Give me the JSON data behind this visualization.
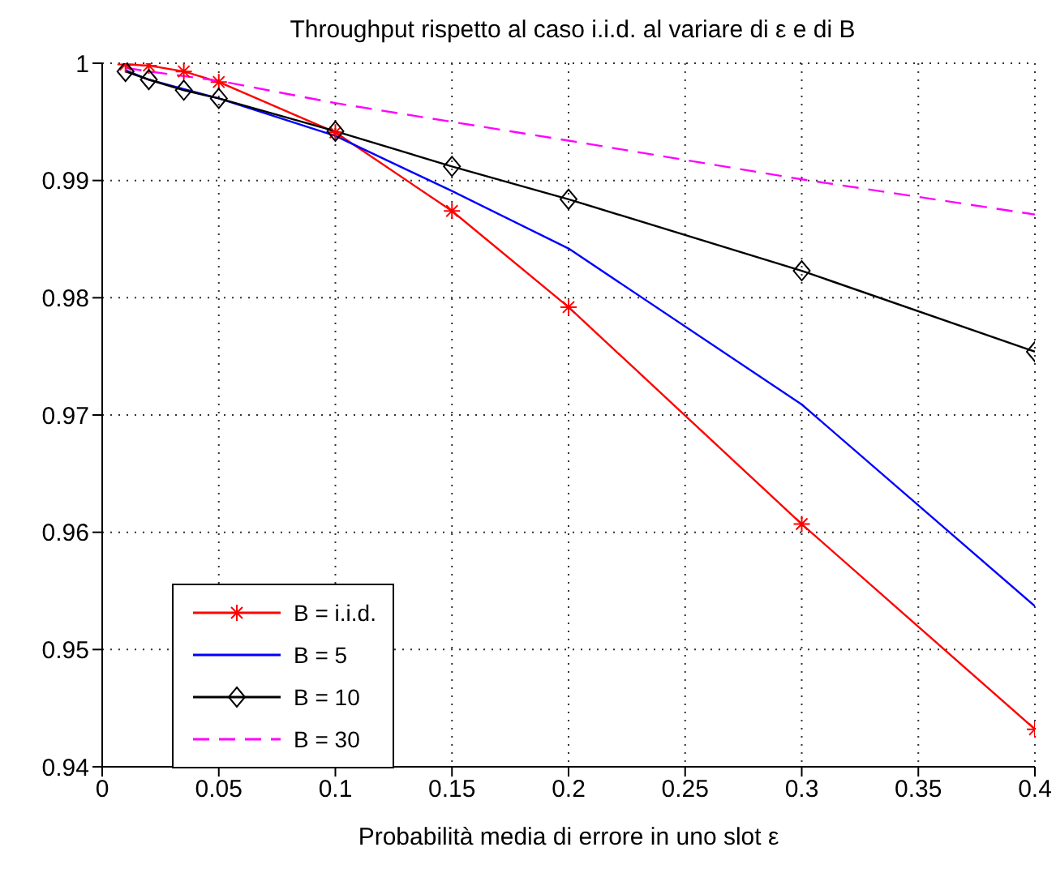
{
  "chart_data": {
    "type": "line",
    "title": "Throughput rispetto al caso i.i.d. al variare di ε e di B",
    "xlabel": "Probabilità media di errore in uno slot ε",
    "x": [
      0.01,
      0.02,
      0.035,
      0.05,
      0.1,
      0.15,
      0.2,
      0.3,
      0.4
    ],
    "series": [
      {
        "name": "B = i.i.d.",
        "color": "#ff0000",
        "marker": "cross",
        "line_style": "solid",
        "values": [
          0.9999,
          0.9998,
          0.9993,
          0.9984,
          0.9941,
          0.9874,
          0.9792,
          0.9607,
          0.9432
        ]
      },
      {
        "name": "B = 5",
        "color": "#0000ff",
        "marker": "none",
        "line_style": "solid",
        "values": [
          0.9994,
          0.9986,
          0.9978,
          0.997,
          0.9938,
          0.9891,
          0.9842,
          0.9709,
          0.9537
        ]
      },
      {
        "name": "B = 10",
        "color": "#000000",
        "marker": "diamond",
        "line_style": "solid",
        "values": [
          0.9993,
          0.9986,
          0.9977,
          0.997,
          0.9942,
          0.9912,
          0.9884,
          0.9823,
          0.9754
        ]
      },
      {
        "name": "B = 30",
        "color": "#ff00ff",
        "marker": "none",
        "line_style": "dashed",
        "values": [
          0.9996,
          0.9993,
          0.9989,
          0.9985,
          0.9966,
          0.995,
          0.9934,
          0.9901,
          0.9871
        ]
      }
    ],
    "xlim": [
      0,
      0.4
    ],
    "xticks": [
      0,
      0.05,
      0.1,
      0.15,
      0.2,
      0.25,
      0.3,
      0.35,
      0.4
    ],
    "ylim": [
      0.94,
      1
    ],
    "yticks": [
      0.94,
      0.95,
      0.96,
      0.97,
      0.98,
      0.99,
      1
    ],
    "grid": true,
    "legend": "bottom left"
  }
}
